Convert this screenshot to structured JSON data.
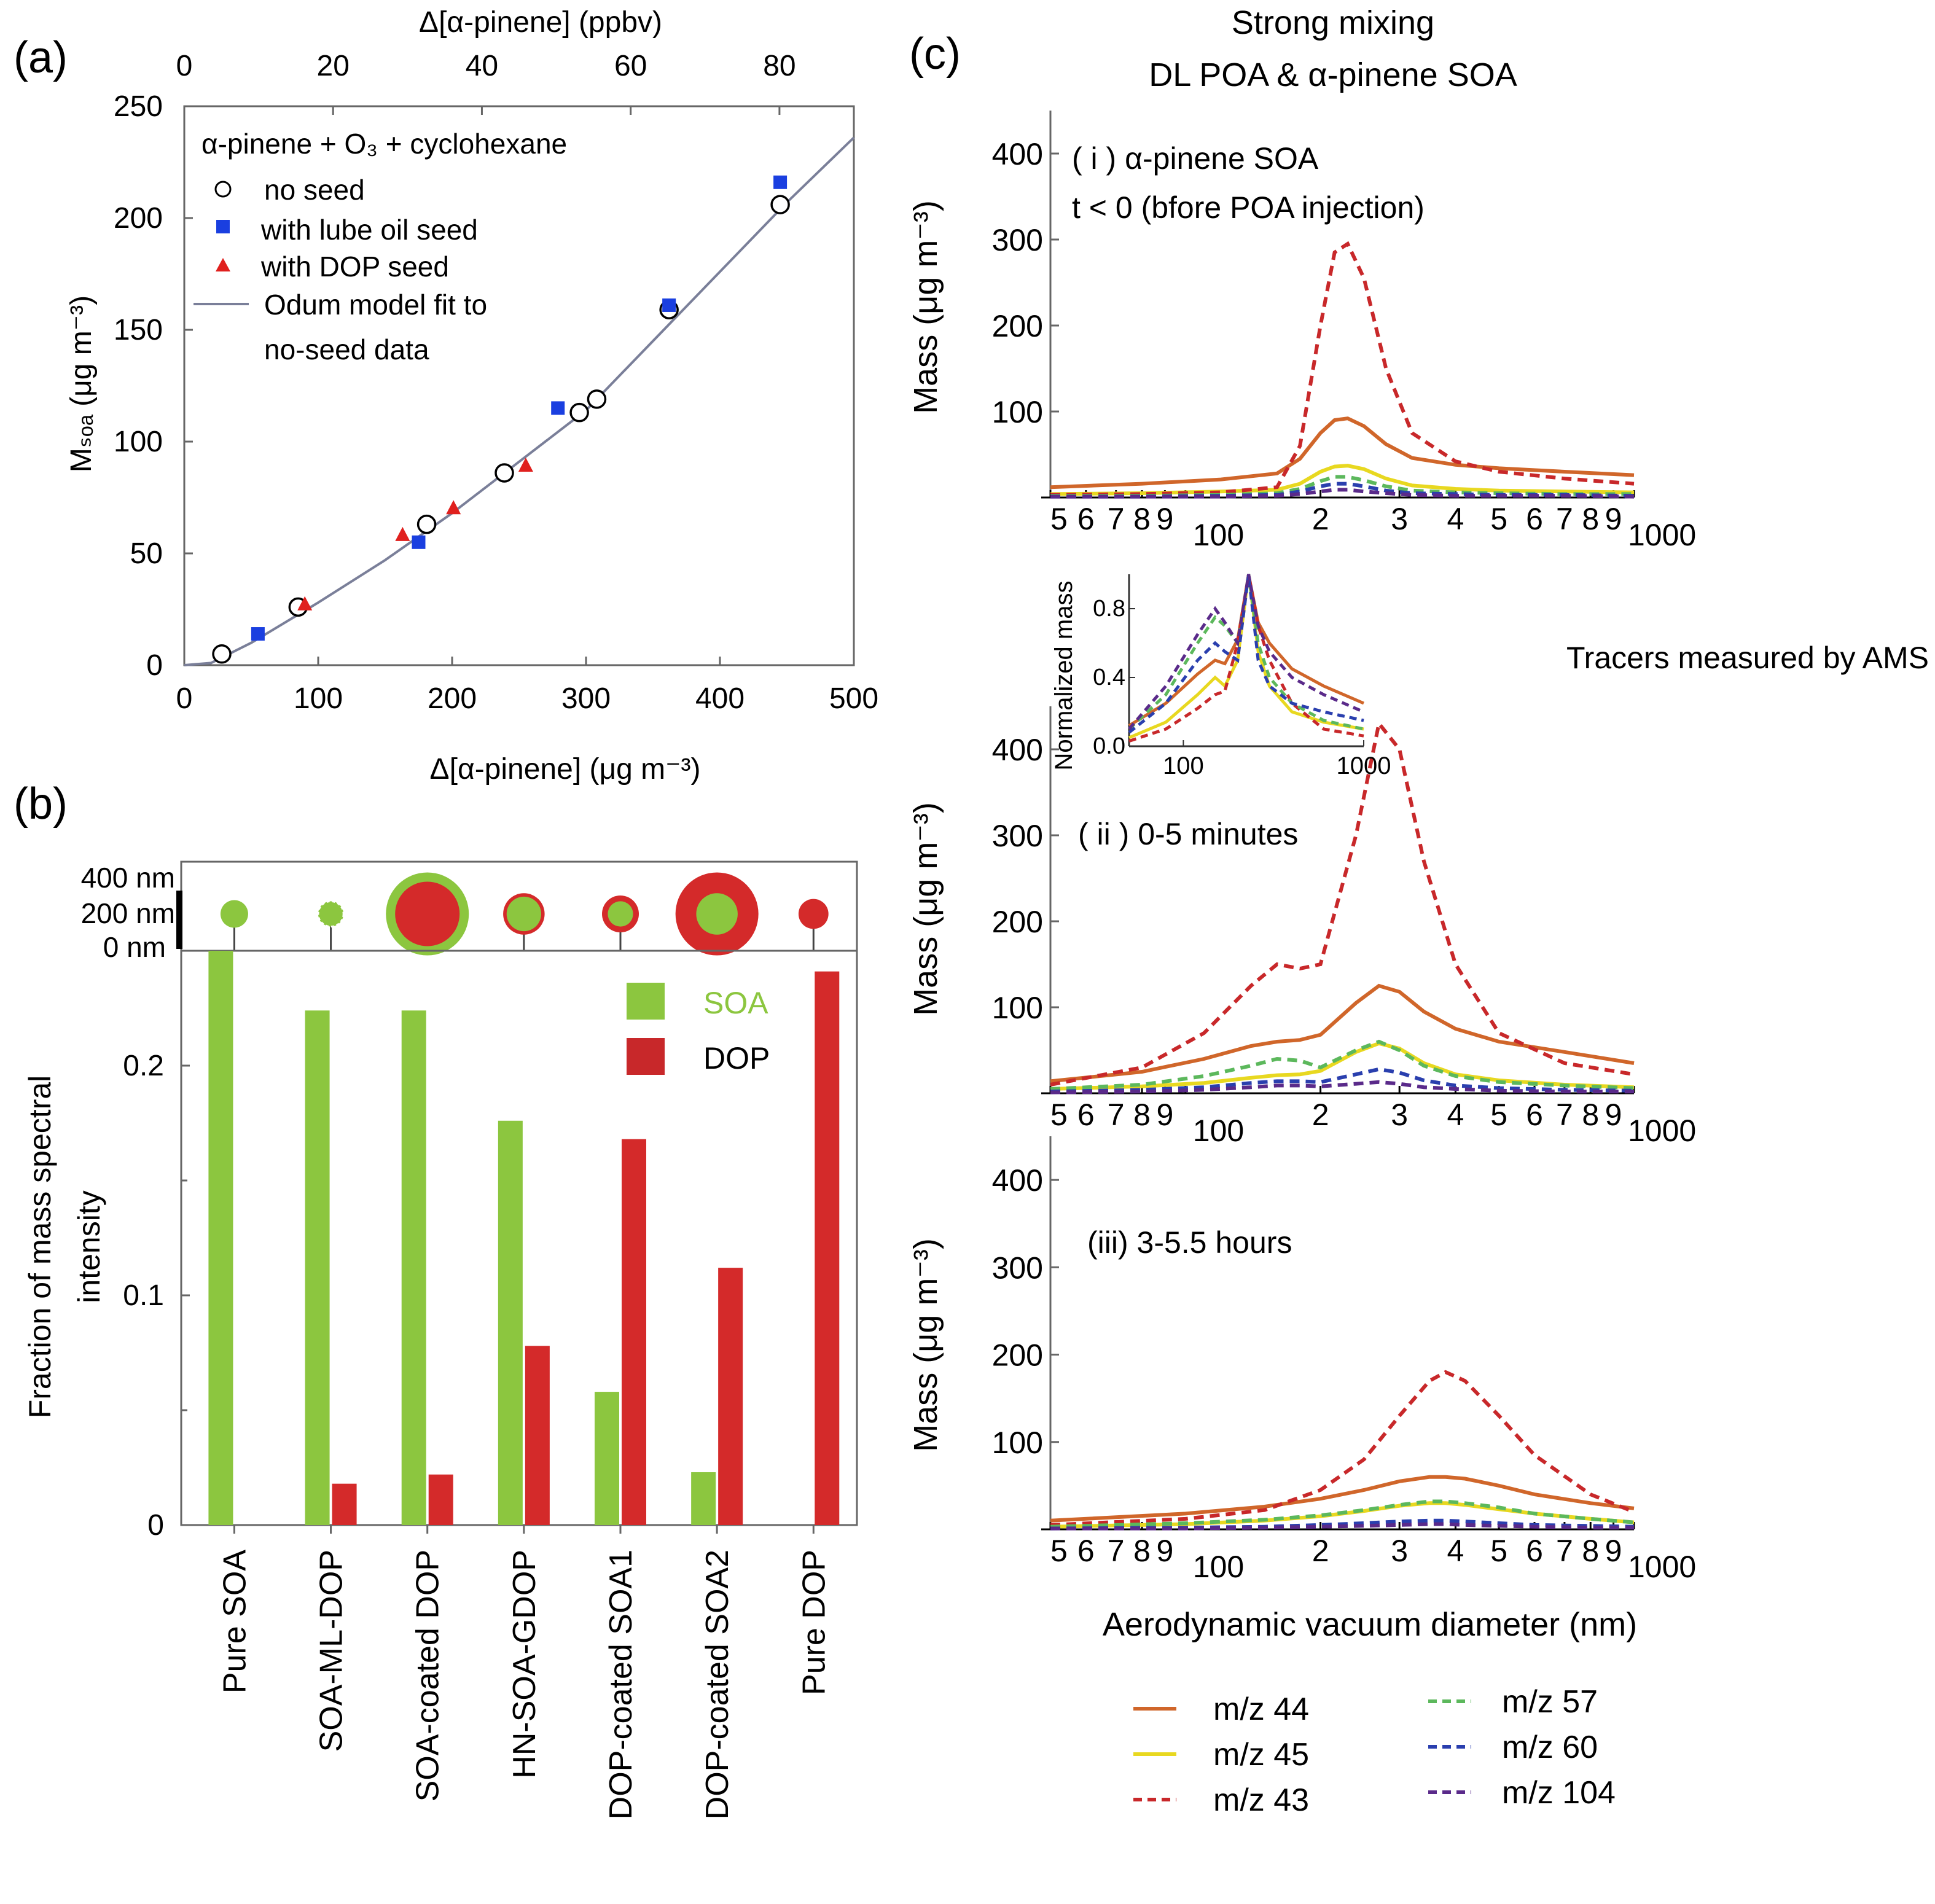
{
  "panel_a": {
    "label": "(a)",
    "top_axis_label": "Δ[α-pinene] (ppbv)",
    "x_axis_label": "Δ[α-pinene] (μg m⁻³)",
    "y_axis_label": "Mₛₒₐ (μg m⁻³)",
    "legend_title": "α-pinene + O₃ + cyclohexane",
    "legend_no_seed": "no seed",
    "legend_lube": "with lube oil seed",
    "legend_dop": "with DOP seed",
    "legend_fit_line1": "Odum model fit to",
    "legend_fit_line2": "no-seed data"
  },
  "panel_b": {
    "label": "(b)",
    "y_axis_label_line1": "Fraction of mass spectral",
    "y_axis_label_line2": "intensity",
    "size_labels": [
      "400 nm",
      "200 nm",
      "0 nm"
    ],
    "legend_soa": "SOA",
    "legend_dop": "DOP"
  },
  "panel_c": {
    "label": "(c)",
    "title_line1": "Strong mixing",
    "title_line2": "DL POA & α-pinene SOA",
    "sub_i_line1": "( i ) α-pinene SOA",
    "sub_i_line2": "t < 0 (bfore POA injection)",
    "sub_ii": "( ii ) 0-5 minutes",
    "sub_iii": "(iii) 3-5.5 hours",
    "y_axis_label": "Mass (μg m⁻³)",
    "x_axis_label": "Aerodynamic vacuum diameter (nm)",
    "tracers_label": "Tracers measured by AMS",
    "inset_y_label": "Normalized mass",
    "x_tick_labels": [
      "5",
      "6",
      "7",
      "8",
      "9",
      "100",
      "2",
      "3",
      "4",
      "5",
      "6",
      "7",
      "8",
      "9",
      "1000"
    ],
    "inset_x_tick_labels": [
      "100",
      "1000"
    ],
    "legend": [
      {
        "name": "m/z 44",
        "color": "#d0662a",
        "dash": false
      },
      {
        "name": "m/z 45",
        "color": "#e8d820",
        "dash": false
      },
      {
        "name": "m/z 43",
        "color": "#c8282a",
        "dash": true
      },
      {
        "name": "m/z 57",
        "color": "#5cb85c",
        "dash": true
      },
      {
        "name": "m/z 60",
        "color": "#2a3fae",
        "dash": true
      },
      {
        "name": "m/z 104",
        "color": "#5a2a8a",
        "dash": true
      }
    ]
  },
  "chart_data": [
    {
      "id": "a",
      "type": "scatter",
      "title": "α-pinene + O₃ + cyclohexane",
      "xlabel": "Δ[α-pinene] (μg m⁻³)",
      "x2label": "Δ[α-pinene] (ppbv)",
      "ylabel": "Mₛₒₐ (μg m⁻³)",
      "xlim": [
        0,
        500
      ],
      "x2lim": [
        0,
        90
      ],
      "ylim": [
        0,
        250
      ],
      "xticks": [
        0,
        100,
        200,
        300,
        400,
        500
      ],
      "x2ticks": [
        0,
        20,
        40,
        60,
        80
      ],
      "yticks": [
        0,
        50,
        100,
        150,
        200,
        250
      ],
      "series": [
        {
          "name": "no seed",
          "marker": "open-circle",
          "color": "#000000",
          "points": [
            [
              28,
              5
            ],
            [
              85,
              26
            ],
            [
              181,
              63
            ],
            [
              239,
              86
            ],
            [
              295,
              113
            ],
            [
              308,
              119
            ],
            [
              362,
              159
            ],
            [
              445,
              206
            ]
          ]
        },
        {
          "name": "with lube oil seed",
          "marker": "square",
          "color": "#1a3fe0",
          "points": [
            [
              55,
              14
            ],
            [
              175,
              55
            ],
            [
              279,
              115
            ],
            [
              362,
              161
            ],
            [
              445,
              216
            ]
          ]
        },
        {
          "name": "with DOP seed",
          "marker": "triangle",
          "color": "#e0201e",
          "points": [
            [
              90,
              27
            ],
            [
              163,
              58
            ],
            [
              201,
              70
            ],
            [
              255,
              89
            ]
          ]
        },
        {
          "name": "Odum model fit to no-seed data",
          "marker": "line",
          "color": "#7a7f99",
          "points": [
            [
              0,
              0
            ],
            [
              20,
              1
            ],
            [
              50,
              10
            ],
            [
              100,
              28
            ],
            [
              150,
              47
            ],
            [
              200,
              68
            ],
            [
              250,
              91
            ],
            [
              300,
              114
            ],
            [
              350,
              145
            ],
            [
              400,
              176
            ],
            [
              450,
              207
            ],
            [
              500,
              236
            ]
          ]
        }
      ]
    },
    {
      "id": "b",
      "type": "bar",
      "ylabel": "Fraction of mass spectral intensity",
      "ylim": [
        0,
        0.25
      ],
      "yticks": [
        0,
        0.1,
        0.2
      ],
      "ytick_labels": [
        "0",
        "0.1",
        "0.2"
      ],
      "categories": [
        "Pure SOA",
        "SOA-ML-DOP",
        "SOA-coated DOP",
        "HN-SOA-GDOP",
        "DOP-coated SOA1",
        "DOP-coated SOA2",
        "Pure DOP"
      ],
      "series": [
        {
          "name": "SOA",
          "color": "#8cc63f",
          "values": [
            0.25,
            0.224,
            0.224,
            0.176,
            0.058,
            0.023,
            0.0
          ]
        },
        {
          "name": "DOP",
          "color": "#d42a2a",
          "values": [
            0.0,
            0.018,
            0.022,
            0.078,
            0.168,
            0.112,
            0.241
          ]
        }
      ],
      "particle_diameters_nm": [
        {
          "core": "SOA",
          "core_nm": 120,
          "shell": null,
          "shell_nm": 0
        },
        {
          "core": "SOA",
          "core_nm": 110,
          "shell": null,
          "shell_nm": 0,
          "style": "dashed"
        },
        {
          "core": "DOP",
          "core_nm": 280,
          "shell": "SOA",
          "shell_nm": 360
        },
        {
          "core": "SOA",
          "core_nm": 150,
          "shell": "DOP",
          "shell_nm": 180
        },
        {
          "core": "SOA",
          "core_nm": 110,
          "shell": "DOP",
          "shell_nm": 160
        },
        {
          "core": "SOA",
          "core_nm": 180,
          "shell": "DOP",
          "shell_nm": 360
        },
        {
          "core": "DOP",
          "core_nm": 130,
          "shell": null,
          "shell_nm": 0
        }
      ]
    },
    {
      "id": "c-i",
      "type": "line",
      "title": "( i ) α-pinene SOA, t < 0 (bfore POA injection)",
      "xscale": "log",
      "xlim": [
        50,
        1000
      ],
      "ylim": [
        0,
        450
      ],
      "xlabel": "Aerodynamic vacuum diameter (nm)",
      "ylabel": "Mass (μg m⁻³)",
      "x": [
        50,
        80,
        120,
        160,
        180,
        200,
        215,
        230,
        250,
        280,
        320,
        400,
        500,
        700,
        1000
      ],
      "series": [
        {
          "name": "m/z 44",
          "values": [
            12,
            16,
            21,
            28,
            45,
            75,
            90,
            92,
            83,
            62,
            46,
            38,
            34,
            30,
            26
          ]
        },
        {
          "name": "m/z 45",
          "values": [
            4,
            5,
            7,
            9,
            16,
            30,
            36,
            37,
            33,
            22,
            14,
            10,
            8,
            7,
            6
          ]
        },
        {
          "name": "m/z 43",
          "values": [
            3,
            4,
            6,
            12,
            60,
            200,
            285,
            295,
            255,
            150,
            75,
            42,
            30,
            22,
            16
          ]
        },
        {
          "name": "m/z 57",
          "values": [
            2,
            2,
            3,
            5,
            10,
            19,
            24,
            24,
            20,
            13,
            8,
            6,
            5,
            4,
            4
          ]
        },
        {
          "name": "m/z 60",
          "values": [
            1,
            1,
            2,
            3,
            7,
            13,
            16,
            16,
            13,
            8,
            5,
            4,
            3,
            3,
            2
          ]
        },
        {
          "name": "m/z 104",
          "values": [
            1,
            1,
            1,
            2,
            4,
            7,
            9,
            9,
            7,
            5,
            3,
            2,
            2,
            2,
            1
          ]
        }
      ]
    },
    {
      "id": "c-ii",
      "type": "line",
      "title": "( ii ) 0-5 minutes",
      "xscale": "log",
      "xlim": [
        50,
        1000
      ],
      "ylim": [
        0,
        450
      ],
      "xlabel": "Aerodynamic vacuum diameter (nm)",
      "ylabel": "Mass (μg m⁻³)",
      "x": [
        50,
        80,
        110,
        140,
        160,
        180,
        200,
        240,
        270,
        300,
        340,
        400,
        500,
        700,
        1000
      ],
      "series": [
        {
          "name": "m/z 44",
          "values": [
            14,
            25,
            40,
            55,
            60,
            62,
            68,
            105,
            125,
            118,
            95,
            75,
            60,
            48,
            35
          ]
        },
        {
          "name": "m/z 45",
          "values": [
            5,
            8,
            12,
            18,
            21,
            22,
            26,
            48,
            58,
            52,
            35,
            22,
            15,
            10,
            7
          ]
        },
        {
          "name": "m/z 43",
          "values": [
            10,
            30,
            70,
            125,
            150,
            145,
            150,
            300,
            430,
            400,
            270,
            150,
            70,
            35,
            22
          ]
        },
        {
          "name": "m/z 57",
          "values": [
            5,
            10,
            20,
            32,
            40,
            38,
            30,
            50,
            60,
            50,
            32,
            20,
            13,
            9,
            6
          ]
        },
        {
          "name": "m/z 60",
          "values": [
            2,
            4,
            7,
            12,
            14,
            14,
            13,
            22,
            28,
            24,
            15,
            9,
            6,
            4,
            3
          ]
        },
        {
          "name": "m/z 104",
          "values": [
            1,
            2,
            4,
            7,
            9,
            9,
            8,
            11,
            13,
            11,
            7,
            5,
            3,
            2,
            2
          ]
        }
      ]
    },
    {
      "id": "c-ii-inset",
      "type": "line",
      "title": "Normalized mass",
      "xscale": "log",
      "xlim": [
        50,
        1000
      ],
      "ylim": [
        0,
        1.0
      ],
      "yticks": [
        0,
        0.4,
        0.8
      ],
      "ytick_labels": [
        "0.0",
        "0.4",
        "0.8"
      ],
      "x": [
        50,
        80,
        120,
        150,
        170,
        200,
        230,
        260,
        300,
        400,
        600,
        1000
      ],
      "series": [
        {
          "name": "m/z 44",
          "values": [
            0.12,
            0.25,
            0.42,
            0.5,
            0.48,
            0.62,
            1.0,
            0.72,
            0.6,
            0.45,
            0.35,
            0.25
          ]
        },
        {
          "name": "m/z 45",
          "values": [
            0.05,
            0.14,
            0.3,
            0.4,
            0.35,
            0.5,
            1.0,
            0.55,
            0.35,
            0.2,
            0.14,
            0.1
          ]
        },
        {
          "name": "m/z 43",
          "values": [
            0.03,
            0.1,
            0.22,
            0.3,
            0.32,
            0.6,
            1.0,
            0.7,
            0.5,
            0.25,
            0.1,
            0.06
          ]
        },
        {
          "name": "m/z 57",
          "values": [
            0.1,
            0.3,
            0.6,
            0.75,
            0.7,
            0.6,
            1.0,
            0.6,
            0.4,
            0.25,
            0.15,
            0.1
          ]
        },
        {
          "name": "m/z 60",
          "values": [
            0.08,
            0.25,
            0.5,
            0.6,
            0.55,
            0.5,
            1.0,
            0.5,
            0.35,
            0.25,
            0.2,
            0.15
          ]
        },
        {
          "name": "m/z 104",
          "values": [
            0.1,
            0.35,
            0.65,
            0.8,
            0.72,
            0.6,
            1.0,
            0.7,
            0.55,
            0.4,
            0.3,
            0.2
          ]
        }
      ]
    },
    {
      "id": "c-iii",
      "type": "line",
      "title": "(iii) 3-5.5 hours",
      "xscale": "log",
      "xlim": [
        50,
        1000
      ],
      "ylim": [
        0,
        450
      ],
      "xlabel": "Aerodynamic vacuum diameter (nm)",
      "ylabel": "Mass (μg m⁻³)",
      "x": [
        50,
        100,
        150,
        200,
        250,
        300,
        350,
        380,
        420,
        500,
        600,
        800,
        1000
      ],
      "series": [
        {
          "name": "m/z 44",
          "values": [
            10,
            18,
            26,
            35,
            45,
            55,
            60,
            60,
            58,
            50,
            40,
            30,
            24
          ]
        },
        {
          "name": "m/z 45",
          "values": [
            3,
            6,
            10,
            15,
            21,
            27,
            30,
            30,
            28,
            23,
            18,
            12,
            8
          ]
        },
        {
          "name": "m/z 43",
          "values": [
            5,
            12,
            22,
            45,
            80,
            130,
            170,
            180,
            170,
            130,
            85,
            40,
            20
          ]
        },
        {
          "name": "m/z 57",
          "values": [
            3,
            7,
            11,
            16,
            22,
            28,
            32,
            32,
            30,
            25,
            18,
            12,
            8
          ]
        },
        {
          "name": "m/z 60",
          "values": [
            1,
            2,
            3,
            5,
            7,
            9,
            10,
            10,
            9,
            7,
            5,
            4,
            3
          ]
        },
        {
          "name": "m/z 104",
          "values": [
            1,
            1,
            2,
            3,
            4,
            5,
            6,
            6,
            5,
            4,
            3,
            2,
            2
          ]
        }
      ]
    }
  ]
}
